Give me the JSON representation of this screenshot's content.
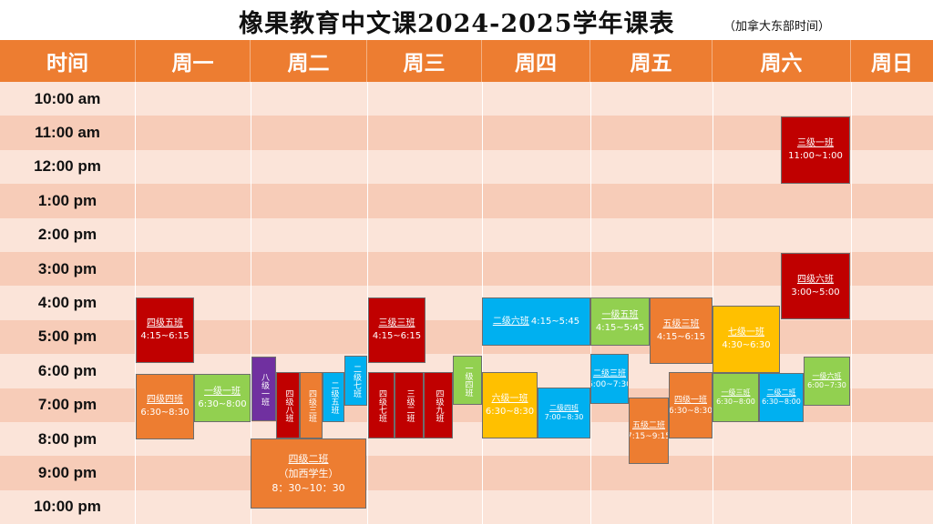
{
  "title": {
    "main": "橡果教育中文课2024-2025学年课表",
    "note": "（加拿大东部时间）"
  },
  "header": {
    "time": "时间",
    "days": [
      "周一",
      "周二",
      "周三",
      "周四",
      "周五",
      "周六",
      "周日"
    ]
  },
  "times": [
    "10:00 am",
    "11:00 am",
    "12:00 pm",
    "1:00 pm",
    "2:00 pm",
    "3:00 pm",
    "4:00 pm",
    "5:00 pm",
    "6:00 pm",
    "7:00 pm",
    "8:00 pm",
    "9:00 pm",
    "10:00 pm"
  ],
  "colors": {
    "header": "#ed7d31",
    "band_light": "#fbe4d9",
    "band_dark": "#f7ccb8",
    "red": "#c00000",
    "orange": "#ed7d31",
    "green": "#92d050",
    "blue": "#00b0f0",
    "purple": "#7030a0",
    "yellow": "#ffc000"
  },
  "classes": [
    {
      "name": "三级一班",
      "time": "11:00~1:00",
      "color": "red",
      "day": "周六"
    },
    {
      "name": "四级六班",
      "time": "3:00~5:00",
      "color": "red",
      "day": "周六"
    },
    {
      "name": "四级五班",
      "time": "4:15~6:15",
      "color": "red",
      "day": "周一"
    },
    {
      "name": "四级四班",
      "time": "6:30~8:30",
      "color": "orange",
      "day": "周一"
    },
    {
      "name": "一级一班",
      "time": "6:30~8:00",
      "color": "green",
      "day": "周一"
    },
    {
      "name": "八级一班",
      "time": "",
      "color": "purple",
      "day": "周二"
    },
    {
      "name": "四级八班",
      "time": "",
      "color": "red",
      "day": "周二"
    },
    {
      "name": "四级三班",
      "time": "",
      "color": "orange",
      "day": "周二"
    },
    {
      "name": "二级五班",
      "time": "",
      "color": "blue",
      "day": "周二"
    },
    {
      "name": "二级七班",
      "time": "",
      "color": "blue",
      "day": "周二"
    },
    {
      "name": "四级二班",
      "time": "（加西学生）",
      "extra": "8：30~10：30",
      "color": "orange",
      "day": "周二"
    },
    {
      "name": "三级三班",
      "time": "4:15~6:15",
      "color": "red",
      "day": "周三"
    },
    {
      "name": "四级七班",
      "time": "",
      "color": "red",
      "day": "周三"
    },
    {
      "name": "三级二班",
      "time": "",
      "color": "red",
      "day": "周三"
    },
    {
      "name": "四级九班",
      "time": "",
      "color": "red",
      "day": "周三"
    },
    {
      "name": "一级四班",
      "time": "",
      "color": "green",
      "day": "周三"
    },
    {
      "name": "二级六班",
      "time": "4:15~5:45",
      "color": "blue",
      "day": "周四"
    },
    {
      "name": "六级一班",
      "time": "6:30~8:30",
      "color": "yellow",
      "day": "周四"
    },
    {
      "name": "二级四班",
      "time": "7:00~8:30",
      "color": "blue",
      "day": "周四"
    },
    {
      "name": "一级五班",
      "time": "4:15~5:45",
      "color": "green",
      "day": "周五"
    },
    {
      "name": "五级三班",
      "time": "4:15~6:15",
      "color": "orange",
      "day": "周五"
    },
    {
      "name": "二级三班",
      "time": "6:00~7:30",
      "color": "blue",
      "day": "周五"
    },
    {
      "name": "五级二班",
      "time": "7:15~9:15",
      "color": "orange",
      "day": "周五"
    },
    {
      "name": "四级一班",
      "time": "6:30~8:30",
      "color": "orange",
      "day": "周五"
    },
    {
      "name": "七级一班",
      "time": "4:30~6:30",
      "color": "yellow",
      "day": "周六"
    },
    {
      "name": "一级三班",
      "time": "6:30~8:00",
      "color": "green",
      "day": "周六"
    },
    {
      "name": "二级二班",
      "time": "6:30~8:00",
      "color": "blue",
      "day": "周六"
    },
    {
      "name": "一级六班",
      "time": "6:00~7:30",
      "color": "green",
      "day": "周六"
    }
  ]
}
